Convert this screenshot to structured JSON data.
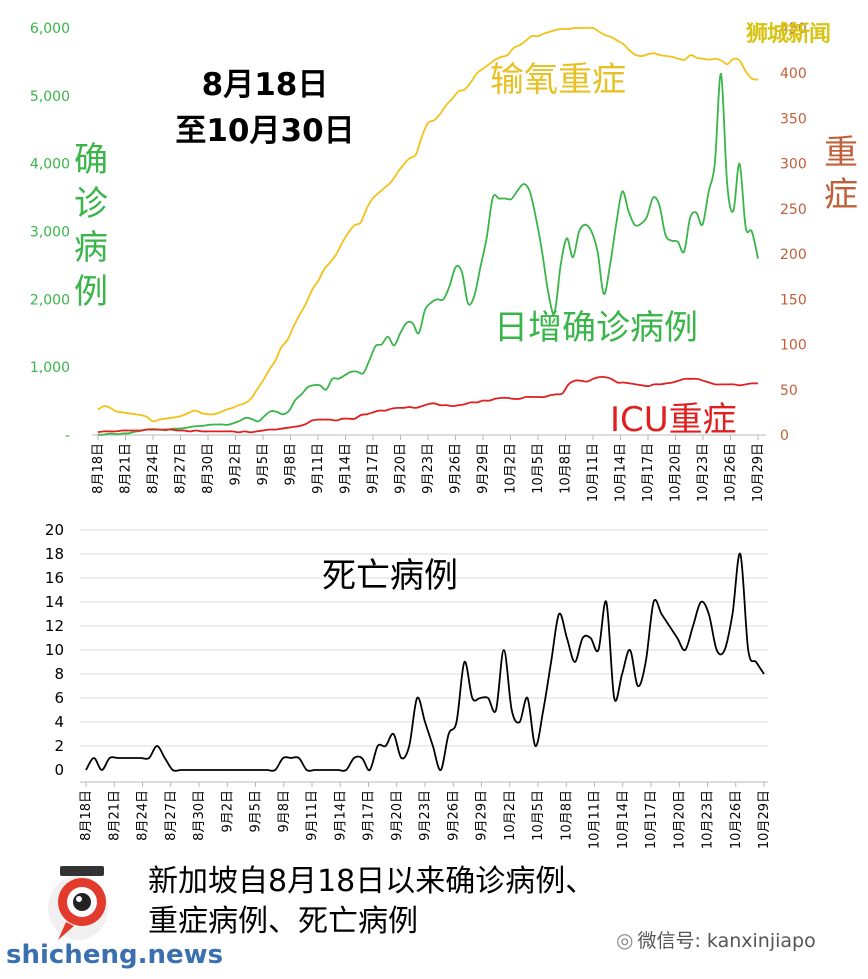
{
  "brand": "狮城新闻",
  "range_title": [
    "8月18日",
    "至10月30日"
  ],
  "labels": {
    "oxygen_severe": "输氧重症",
    "cases_axis": "确诊病例",
    "severe_axis": "重症",
    "daily_cases": "日增确诊病例",
    "icu": "ICU重症",
    "deaths": "死亡病例"
  },
  "caption": [
    "新加坡自8月18日以来确诊病例、",
    "重症病例、死亡病例"
  ],
  "footer": {
    "site": "shicheng.news",
    "wechat": "微信号: kanxinjiapo",
    "wechat_icon": "wechat-icon",
    "logo_icon": "shicheng-news-logo"
  },
  "colors": {
    "cases": "#3ab54a",
    "oxygen": "#f2c21b",
    "icu": "#e02020",
    "deaths": "#000000",
    "left_axis": "#3ab54a",
    "right_axis": "#c0603a",
    "brand": "#d8c414"
  },
  "chart_data": [
    {
      "type": "line",
      "x_ticks": [
        "8月18日",
        "8月21日",
        "8月24日",
        "8月27日",
        "8月30日",
        "9月2日",
        "9月5日",
        "9月8日",
        "9月11日",
        "9月14日",
        "9月17日",
        "9月20日",
        "9月23日",
        "9月26日",
        "9月29日",
        "10月2日",
        "10月5日",
        "10月8日",
        "10月11日",
        "10月14日",
        "10月17日",
        "10月20日",
        "10月23日",
        "10月26日",
        "10月29日"
      ],
      "x_start": "8月18日",
      "x_end": "10月30日",
      "y_left": {
        "label": "确诊病例",
        "ylim": [
          0,
          6000
        ],
        "ticks": [
          "-",
          "1,000",
          "2,000",
          "3,000",
          "4,000",
          "5,000",
          "6,000"
        ]
      },
      "y_right": {
        "label": "重症",
        "ylim": [
          0,
          450
        ],
        "ticks": [
          "0",
          "50",
          "100",
          "150",
          "200",
          "250",
          "300",
          "350",
          "400",
          "450"
        ]
      },
      "grid": false,
      "series": [
        {
          "name": "日增确诊病例",
          "axis": "left",
          "values": [
            4,
            6,
            21,
            11,
            22,
            25,
            49,
            62,
            82,
            87,
            80,
            70,
            92,
            95,
            101,
            120,
            131,
            135,
            150,
            155,
            156,
            150,
            175,
            210,
            254,
            233,
            200,
            280,
            350,
            340,
            305,
            360,
            518,
            600,
            704,
            735,
            730,
            670,
            830,
            830,
            880,
            930,
            935,
            910,
            1100,
            1312,
            1336,
            1450,
            1320,
            1500,
            1650,
            1650,
            1500,
            1840,
            1950,
            2000,
            2000,
            2200,
            2478,
            2400,
            1939,
            2050,
            2475,
            2900,
            3500,
            3486,
            3486,
            3478,
            3600,
            3700,
            3590,
            3200,
            2700,
            2100,
            1800,
            2500,
            2900,
            2620,
            3000,
            3100,
            3000,
            2700,
            2080,
            2500,
            3100,
            3590,
            3300,
            3100,
            3112,
            3220,
            3500,
            3390,
            2950,
            2865,
            2850,
            2700,
            3200,
            3277,
            3100,
            3590,
            4000,
            5324,
            3700,
            3300,
            4000,
            3060,
            3000,
            2600
          ]
        },
        {
          "name": "输氧重症",
          "axis": "right",
          "values": [
            28,
            32,
            30,
            26,
            25,
            24,
            23,
            22,
            20,
            15,
            17,
            18,
            19,
            20,
            22,
            25,
            27,
            24,
            23,
            23,
            25,
            28,
            30,
            33,
            35,
            40,
            50,
            60,
            72,
            82,
            97,
            105,
            120,
            133,
            145,
            160,
            170,
            183,
            191,
            200,
            213,
            224,
            232,
            235,
            251,
            262,
            268,
            274,
            280,
            290,
            299,
            306,
            310,
            330,
            345,
            348,
            355,
            365,
            372,
            380,
            382,
            390,
            400,
            405,
            410,
            415,
            418,
            420,
            428,
            431,
            436,
            441,
            441,
            444,
            446,
            448,
            449,
            449,
            450,
            450,
            450,
            450,
            446,
            442,
            440,
            436,
            432,
            425,
            420,
            419,
            421,
            422,
            420,
            419,
            418,
            416,
            415,
            420,
            417,
            416,
            415,
            416,
            414,
            410,
            416,
            414,
            402,
            394,
            393
          ]
        },
        {
          "name": "ICU重症",
          "axis": "right",
          "values": [
            3,
            4,
            4,
            4,
            5,
            5,
            5,
            5,
            6,
            6,
            6,
            6,
            6,
            5,
            5,
            4,
            5,
            4,
            4,
            4,
            4,
            4,
            4,
            3,
            4,
            3,
            4,
            5,
            6,
            6,
            7,
            8,
            9,
            10,
            12,
            16,
            17,
            17,
            17,
            16,
            18,
            18,
            18,
            22,
            23,
            25,
            27,
            27,
            29,
            30,
            30,
            31,
            30,
            32,
            34,
            35,
            33,
            33,
            32,
            33,
            34,
            36,
            36,
            38,
            38,
            40,
            41,
            41,
            40,
            40,
            42,
            42,
            42,
            42,
            44,
            45,
            46,
            56,
            60,
            60,
            59,
            62,
            64,
            64,
            62,
            58,
            58,
            57,
            56,
            55,
            54,
            56,
            56,
            57,
            58,
            60,
            62,
            62,
            62,
            60,
            58,
            56,
            56,
            56,
            56,
            55,
            56,
            57,
            57
          ]
        }
      ]
    },
    {
      "type": "line",
      "x_ticks": [
        "8月18日",
        "8月21日",
        "8月24日",
        "8月27日",
        "8月30日",
        "9月2日",
        "9月5日",
        "9月8日",
        "9月11日",
        "9月14日",
        "9月17日",
        "9月20日",
        "9月23日",
        "9月26日",
        "9月29日",
        "10月2日",
        "10月5日",
        "10月8日",
        "10月11日",
        "10月14日",
        "10月17日",
        "10月20日",
        "10月23日",
        "10月26日",
        "10月29日"
      ],
      "x_start": "8月18日",
      "x_end": "10月30日",
      "ylim": [
        0,
        20
      ],
      "y_ticks": [
        "0",
        "2",
        "4",
        "6",
        "8",
        "10",
        "12",
        "14",
        "16",
        "18",
        "20"
      ],
      "grid": true,
      "series": [
        {
          "name": "死亡病例",
          "values": [
            0,
            1,
            0,
            1,
            1,
            1,
            1,
            1,
            1,
            2,
            1,
            0,
            0,
            0,
            0,
            0,
            0,
            0,
            0,
            0,
            0,
            0,
            0,
            0,
            0,
            1,
            1,
            1,
            0,
            0,
            0,
            0,
            0,
            0,
            1,
            1,
            0,
            2,
            2,
            3,
            1,
            2,
            6,
            4,
            2,
            0,
            3,
            4,
            9,
            6,
            6,
            6,
            5,
            10,
            5,
            4,
            6,
            2,
            5,
            9,
            13,
            11,
            9,
            11,
            11,
            10,
            14,
            6,
            8,
            10,
            7,
            9,
            14,
            13,
            12,
            11,
            10,
            12,
            14,
            13,
            10,
            10,
            13,
            18,
            10,
            9,
            8
          ]
        }
      ]
    }
  ]
}
